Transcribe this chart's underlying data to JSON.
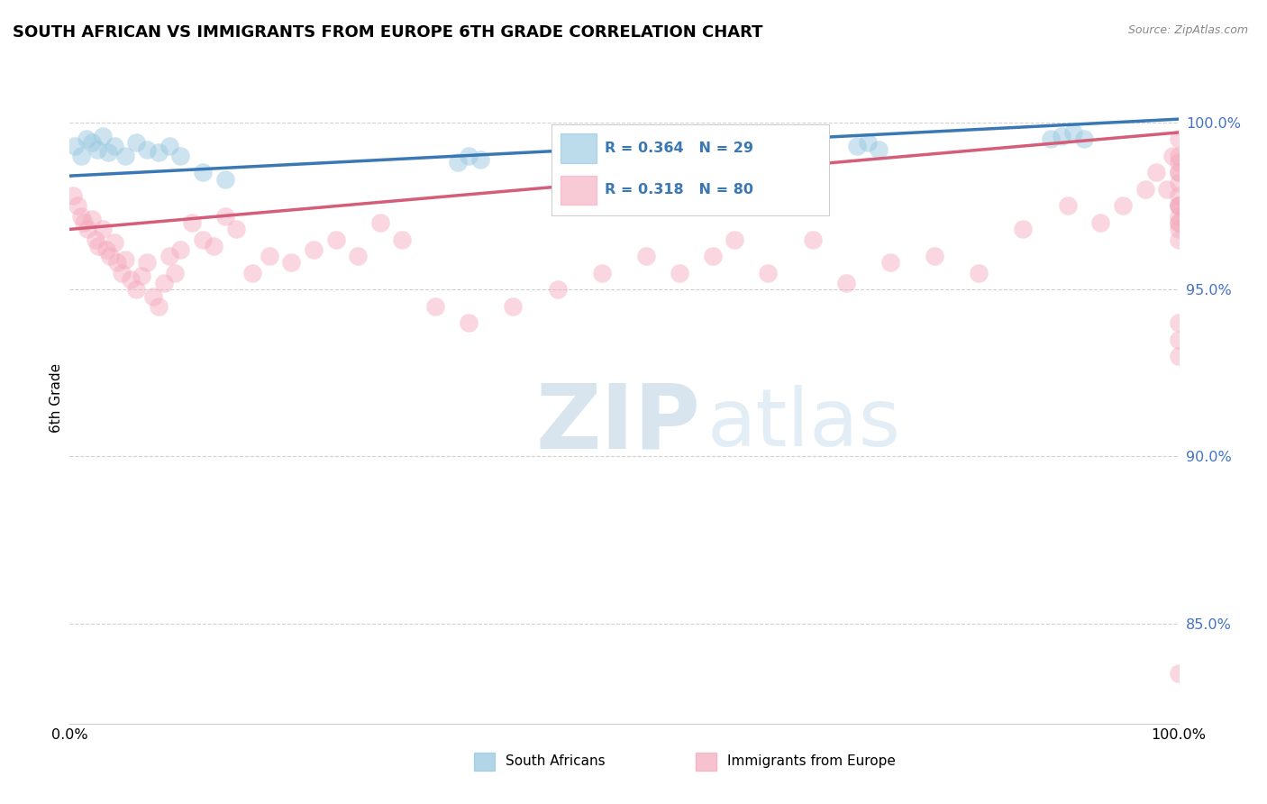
{
  "title": "SOUTH AFRICAN VS IMMIGRANTS FROM EUROPE 6TH GRADE CORRELATION CHART",
  "source": "Source: ZipAtlas.com",
  "ylabel": "6th Grade",
  "legend_label1": "South Africans",
  "legend_label2": "Immigrants from Europe",
  "R1": 0.364,
  "N1": 29,
  "R2": 0.318,
  "N2": 80,
  "x_min": 0.0,
  "x_max": 100.0,
  "y_min": 82.0,
  "y_max": 101.5,
  "yticks": [
    85.0,
    90.0,
    95.0,
    100.0
  ],
  "ytick_labels": [
    "85.0%",
    "90.0%",
    "95.0%",
    "100.0%"
  ],
  "background_color": "#ffffff",
  "color_blue": "#92c5de",
  "color_pink": "#f4a8bb",
  "line_blue": "#3a78b5",
  "line_pink": "#d45d7a",
  "blue_line_start_y": 98.4,
  "blue_line_end_y": 100.1,
  "pink_line_start_y": 96.8,
  "pink_line_end_y": 99.7,
  "blue_points_x": [
    0.5,
    1.0,
    1.5,
    2.0,
    2.5,
    3.0,
    3.5,
    4.0,
    5.0,
    6.0,
    7.0,
    8.0,
    9.0,
    10.0,
    12.0,
    14.0,
    35.0,
    36.0,
    37.0,
    56.0,
    57.0,
    58.0,
    71.0,
    72.0,
    73.0,
    88.5,
    89.5,
    90.5,
    91.5
  ],
  "blue_points_y": [
    99.3,
    99.0,
    99.5,
    99.4,
    99.2,
    99.6,
    99.1,
    99.3,
    99.0,
    99.4,
    99.2,
    99.1,
    99.3,
    99.0,
    98.5,
    98.3,
    98.8,
    99.0,
    98.9,
    99.1,
    99.2,
    99.0,
    99.3,
    99.4,
    99.2,
    99.5,
    99.6,
    99.7,
    99.5
  ],
  "pink_points_x": [
    0.3,
    0.7,
    1.0,
    1.3,
    1.6,
    2.0,
    2.3,
    2.6,
    3.0,
    3.3,
    3.6,
    4.0,
    4.3,
    4.7,
    5.0,
    5.5,
    6.0,
    6.5,
    7.0,
    7.5,
    8.0,
    8.5,
    9.0,
    9.5,
    10.0,
    11.0,
    12.0,
    13.0,
    14.0,
    15.0,
    16.5,
    18.0,
    20.0,
    22.0,
    24.0,
    26.0,
    28.0,
    30.0,
    33.0,
    36.0,
    40.0,
    44.0,
    48.0,
    52.0,
    55.0,
    58.0,
    60.0,
    63.0,
    67.0,
    70.0,
    74.0,
    78.0,
    82.0,
    86.0,
    90.0,
    93.0,
    95.0,
    97.0,
    98.0,
    99.0,
    99.5,
    100.0,
    100.0,
    100.0,
    100.0,
    100.0,
    100.0,
    100.0,
    100.0,
    100.0,
    100.0,
    100.0,
    100.0,
    100.0,
    100.0,
    100.0,
    100.0,
    100.0,
    100.0,
    100.0
  ],
  "pink_points_y": [
    97.8,
    97.5,
    97.2,
    97.0,
    96.8,
    97.1,
    96.5,
    96.3,
    96.8,
    96.2,
    96.0,
    96.4,
    95.8,
    95.5,
    95.9,
    95.3,
    95.0,
    95.4,
    95.8,
    94.8,
    94.5,
    95.2,
    96.0,
    95.5,
    96.2,
    97.0,
    96.5,
    96.3,
    97.2,
    96.8,
    95.5,
    96.0,
    95.8,
    96.2,
    96.5,
    96.0,
    97.0,
    96.5,
    94.5,
    94.0,
    94.5,
    95.0,
    95.5,
    96.0,
    95.5,
    96.0,
    96.5,
    95.5,
    96.5,
    95.2,
    95.8,
    96.0,
    95.5,
    96.8,
    97.5,
    97.0,
    97.5,
    98.0,
    98.5,
    98.0,
    99.0,
    99.5,
    99.0,
    98.5,
    98.8,
    97.5,
    97.0,
    96.5,
    97.2,
    97.8,
    98.2,
    98.5,
    97.5,
    97.0,
    96.8,
    97.5,
    93.5,
    94.0,
    93.0,
    83.5
  ]
}
